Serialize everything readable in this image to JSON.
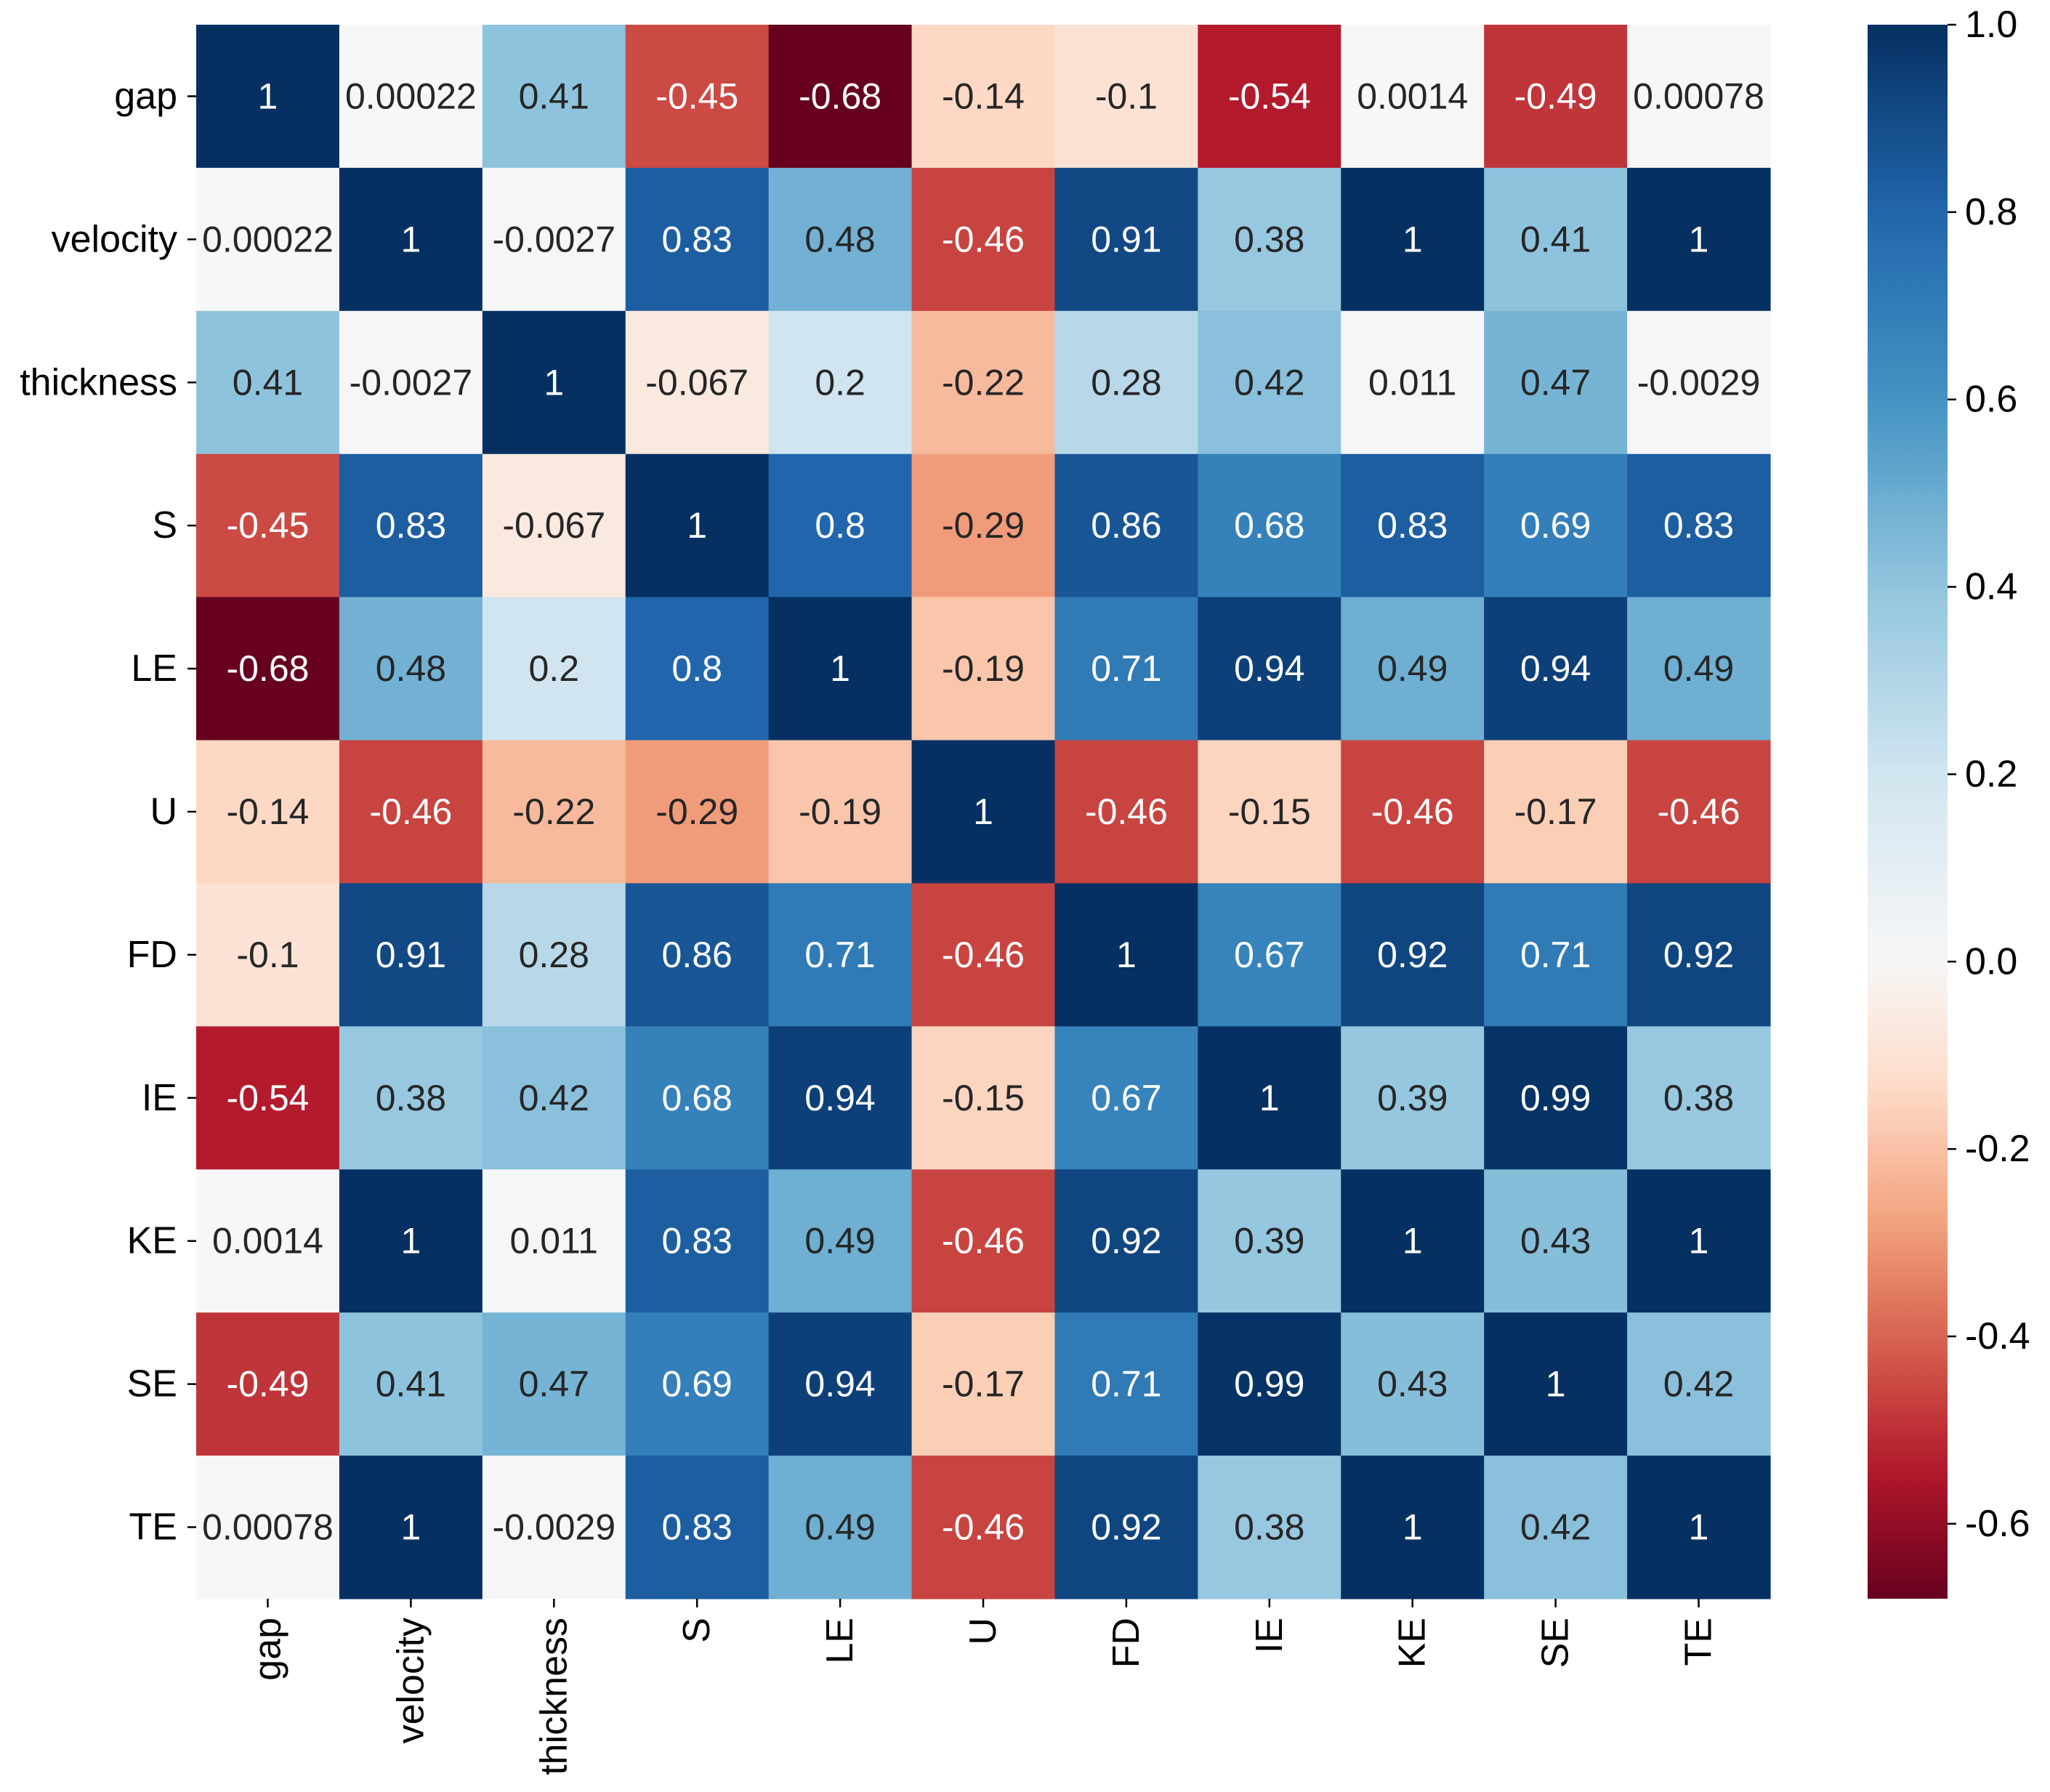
{
  "chart_data": {
    "type": "heatmap",
    "title": "",
    "xlabel": "",
    "ylabel": "",
    "variables": [
      "gap",
      "velocity",
      "thickness",
      "S",
      "LE",
      "U",
      "FD",
      "IE",
      "KE",
      "SE",
      "TE"
    ],
    "matrix": [
      [
        "1",
        "0.00022",
        "0.41",
        "-0.45",
        "-0.68",
        "-0.14",
        "-0.1",
        "-0.54",
        "0.0014",
        "-0.49",
        "0.00078"
      ],
      [
        "0.00022",
        "1",
        "-0.0027",
        "0.83",
        "0.48",
        "-0.46",
        "0.91",
        "0.38",
        "1",
        "0.41",
        "1"
      ],
      [
        "0.41",
        "-0.0027",
        "1",
        "-0.067",
        "0.2",
        "-0.22",
        "0.28",
        "0.42",
        "0.011",
        "0.47",
        "-0.0029"
      ],
      [
        "-0.45",
        "0.83",
        "-0.067",
        "1",
        "0.8",
        "-0.29",
        "0.86",
        "0.68",
        "0.83",
        "0.69",
        "0.83"
      ],
      [
        "-0.68",
        "0.48",
        "0.2",
        "0.8",
        "1",
        "-0.19",
        "0.71",
        "0.94",
        "0.49",
        "0.94",
        "0.49"
      ],
      [
        "-0.14",
        "-0.46",
        "-0.22",
        "-0.29",
        "-0.19",
        "1",
        "-0.46",
        "-0.15",
        "-0.46",
        "-0.17",
        "-0.46"
      ],
      [
        "-0.1",
        "0.91",
        "0.28",
        "0.86",
        "0.71",
        "-0.46",
        "1",
        "0.67",
        "0.92",
        "0.71",
        "0.92"
      ],
      [
        "-0.54",
        "0.38",
        "0.42",
        "0.68",
        "0.94",
        "-0.15",
        "0.67",
        "1",
        "0.39",
        "0.99",
        "0.38"
      ],
      [
        "0.0014",
        "1",
        "0.011",
        "0.83",
        "0.49",
        "-0.46",
        "0.92",
        "0.39",
        "1",
        "0.43",
        "1"
      ],
      [
        "-0.49",
        "0.41",
        "0.47",
        "0.69",
        "0.94",
        "-0.17",
        "0.71",
        "0.99",
        "0.43",
        "1",
        "0.42"
      ],
      [
        "0.00078",
        "1",
        "-0.0029",
        "0.83",
        "0.49",
        "-0.46",
        "0.92",
        "0.38",
        "1",
        "0.42",
        "1"
      ]
    ],
    "colormap": "RdBu",
    "vmin": -0.68,
    "vmax": 1.0,
    "colorbar": {
      "ticks": [
        1.0,
        0.8,
        0.6,
        0.4,
        0.2,
        0.0,
        -0.2,
        -0.4,
        -0.6
      ],
      "tick_labels": [
        "1.0",
        "0.8",
        "0.6",
        "0.4",
        "0.2",
        "0.0",
        "-0.2",
        "-0.4",
        "-0.6"
      ]
    },
    "colormap_stops": [
      "#67001f",
      "#b2182b",
      "#d6604d",
      "#f4a582",
      "#fddbc7",
      "#f7f7f7",
      "#d1e5f0",
      "#92c5de",
      "#4393c3",
      "#2166ac",
      "#053061"
    ],
    "x_tick_labels_rotated": true,
    "legend": "colorbar at right"
  }
}
